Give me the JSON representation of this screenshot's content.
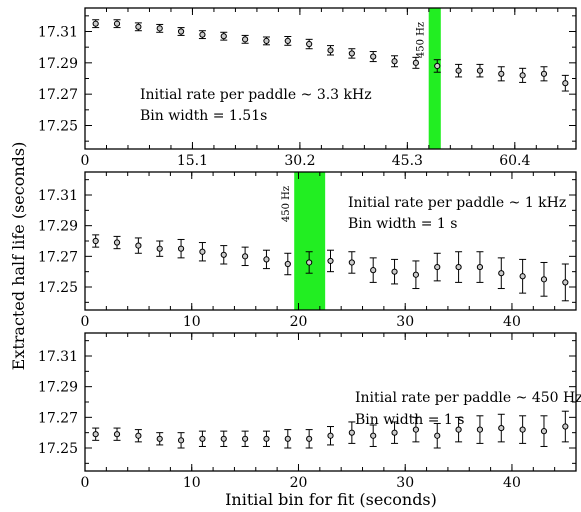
{
  "chart_data": [
    {
      "type": "scatter",
      "xlim": [
        0,
        69
      ],
      "ylim": [
        17.235,
        17.325
      ],
      "xticks": [
        0,
        15.1,
        30.2,
        45.3,
        60.4
      ],
      "xtick_labels": [
        "0",
        "15.1",
        "30.2",
        "45.3",
        "60.4"
      ],
      "yticks": [
        17.25,
        17.27,
        17.29,
        17.31
      ],
      "ytick_labels": [
        "17.25",
        "17.27",
        "17.29",
        "17.31"
      ],
      "band": {
        "x0": 48.3,
        "x1": 50.0,
        "color": "#22ee22",
        "label": "450 Hz"
      },
      "annotations": [
        "Initial rate per paddle ~ 3.3 kHz",
        "Bin width = 1.51s"
      ],
      "x": [
        1.5,
        4.5,
        7.5,
        10.5,
        13.5,
        16.5,
        19.5,
        22.5,
        25.5,
        28.5,
        31.5,
        34.5,
        37.5,
        40.5,
        43.5,
        46.5,
        49.5,
        52.5,
        55.5,
        58.5,
        61.5,
        64.5,
        67.5
      ],
      "y": [
        17.315,
        17.315,
        17.313,
        17.312,
        17.31,
        17.308,
        17.307,
        17.305,
        17.304,
        17.304,
        17.302,
        17.298,
        17.296,
        17.294,
        17.291,
        17.29,
        17.288,
        17.285,
        17.285,
        17.283,
        17.282,
        17.283,
        17.277
      ],
      "err": [
        0.0025,
        0.0025,
        0.0025,
        0.0025,
        0.0025,
        0.0025,
        0.0025,
        0.0025,
        0.0025,
        0.0028,
        0.003,
        0.003,
        0.003,
        0.0032,
        0.0035,
        0.0035,
        0.004,
        0.004,
        0.004,
        0.0045,
        0.0045,
        0.0045,
        0.005
      ]
    },
    {
      "type": "scatter",
      "xlim": [
        0,
        46
      ],
      "ylim": [
        17.235,
        17.325
      ],
      "xticks": [
        0,
        10,
        20,
        30,
        40
      ],
      "xtick_labels": [
        "0",
        "10",
        "20",
        "30",
        "40"
      ],
      "yticks": [
        17.25,
        17.27,
        17.29,
        17.31
      ],
      "ytick_labels": [
        "17.25",
        "17.27",
        "17.29",
        "17.31"
      ],
      "band": {
        "x0": 19.6,
        "x1": 22.5,
        "color": "#22ee22",
        "label": "450 Hz"
      },
      "annotations": [
        "Initial rate per paddle ~ 1 kHz",
        "Bin width = 1 s"
      ],
      "x": [
        1,
        3,
        5,
        7,
        9,
        11,
        13,
        15,
        17,
        19,
        21,
        23,
        25,
        27,
        29,
        31,
        33,
        35,
        37,
        39,
        41,
        43,
        45
      ],
      "y": [
        17.28,
        17.279,
        17.277,
        17.275,
        17.275,
        17.273,
        17.271,
        17.27,
        17.268,
        17.265,
        17.266,
        17.267,
        17.266,
        17.261,
        17.26,
        17.258,
        17.263,
        17.263,
        17.263,
        17.259,
        17.257,
        17.255,
        17.253
      ],
      "err": [
        0.004,
        0.004,
        0.005,
        0.005,
        0.006,
        0.006,
        0.006,
        0.006,
        0.006,
        0.007,
        0.007,
        0.007,
        0.007,
        0.008,
        0.008,
        0.009,
        0.009,
        0.01,
        0.01,
        0.01,
        0.011,
        0.011,
        0.012
      ]
    },
    {
      "type": "scatter",
      "xlim": [
        0,
        46
      ],
      "ylim": [
        17.235,
        17.325
      ],
      "xticks": [
        0,
        10,
        20,
        30,
        40
      ],
      "xtick_labels": [
        "0",
        "10",
        "20",
        "30",
        "40"
      ],
      "yticks": [
        17.25,
        17.27,
        17.29,
        17.31
      ],
      "ytick_labels": [
        "17.25",
        "17.27",
        "17.29",
        "17.31"
      ],
      "annotations": [
        "Initial rate per paddle ~ 450 Hz",
        "Bin width = 1 s"
      ],
      "x": [
        1,
        3,
        5,
        7,
        9,
        11,
        13,
        15,
        17,
        19,
        21,
        23,
        25,
        27,
        29,
        31,
        33,
        35,
        37,
        39,
        41,
        43,
        45
      ],
      "y": [
        17.259,
        17.259,
        17.258,
        17.256,
        17.255,
        17.256,
        17.256,
        17.256,
        17.256,
        17.256,
        17.256,
        17.258,
        17.26,
        17.258,
        17.26,
        17.262,
        17.258,
        17.262,
        17.262,
        17.263,
        17.262,
        17.261,
        17.264
      ],
      "err": [
        0.004,
        0.004,
        0.004,
        0.004,
        0.005,
        0.005,
        0.005,
        0.005,
        0.005,
        0.006,
        0.006,
        0.006,
        0.007,
        0.007,
        0.007,
        0.008,
        0.008,
        0.008,
        0.009,
        0.009,
        0.009,
        0.01,
        0.01
      ]
    }
  ],
  "ylabel": "Extracted half life (seconds)",
  "xlabel": "Initial bin for fit (seconds)"
}
